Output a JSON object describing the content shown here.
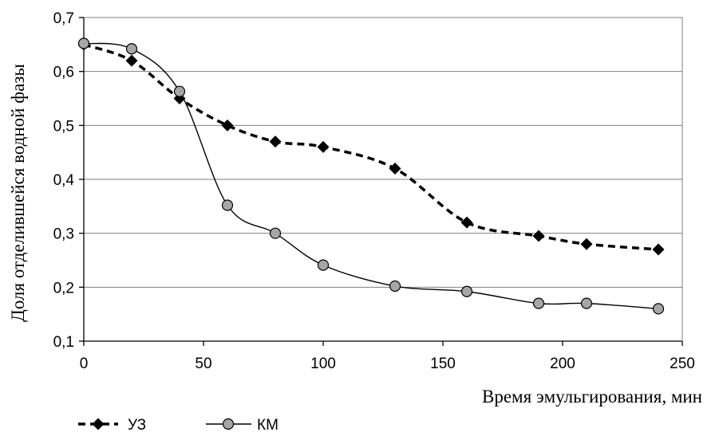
{
  "chart_data": {
    "type": "line",
    "xlabel": "Время эмульгирования, мин",
    "ylabel": "Доля отделившейся водной фазы",
    "xlim": [
      0,
      250
    ],
    "ylim": [
      0.1,
      0.7
    ],
    "x_ticks": [
      "0",
      "50",
      "100",
      "150",
      "200",
      "250"
    ],
    "y_ticks": [
      "0,1",
      "0,2",
      "0,3",
      "0,4",
      "0,5",
      "0,6",
      "0,7"
    ],
    "grid": "horizontal",
    "legend_position": "bottom-left",
    "series": [
      {
        "name": "УЗ",
        "style": "dashed",
        "marker": "diamond",
        "color": "#000000",
        "x": [
          0,
          20,
          40,
          60,
          80,
          100,
          130,
          160,
          190,
          210,
          240
        ],
        "y": [
          0.65,
          0.62,
          0.55,
          0.5,
          0.47,
          0.46,
          0.42,
          0.32,
          0.295,
          0.28,
          0.27
        ]
      },
      {
        "name": "КМ",
        "style": "solid",
        "marker": "circle",
        "color": "#000000",
        "marker_fill": "#a6a6a6",
        "x": [
          0,
          20,
          40,
          60,
          80,
          100,
          130,
          160,
          190,
          210,
          240
        ],
        "y": [
          0.652,
          0.642,
          0.563,
          0.352,
          0.3,
          0.241,
          0.202,
          0.192,
          0.17,
          0.17,
          0.16
        ]
      }
    ]
  }
}
